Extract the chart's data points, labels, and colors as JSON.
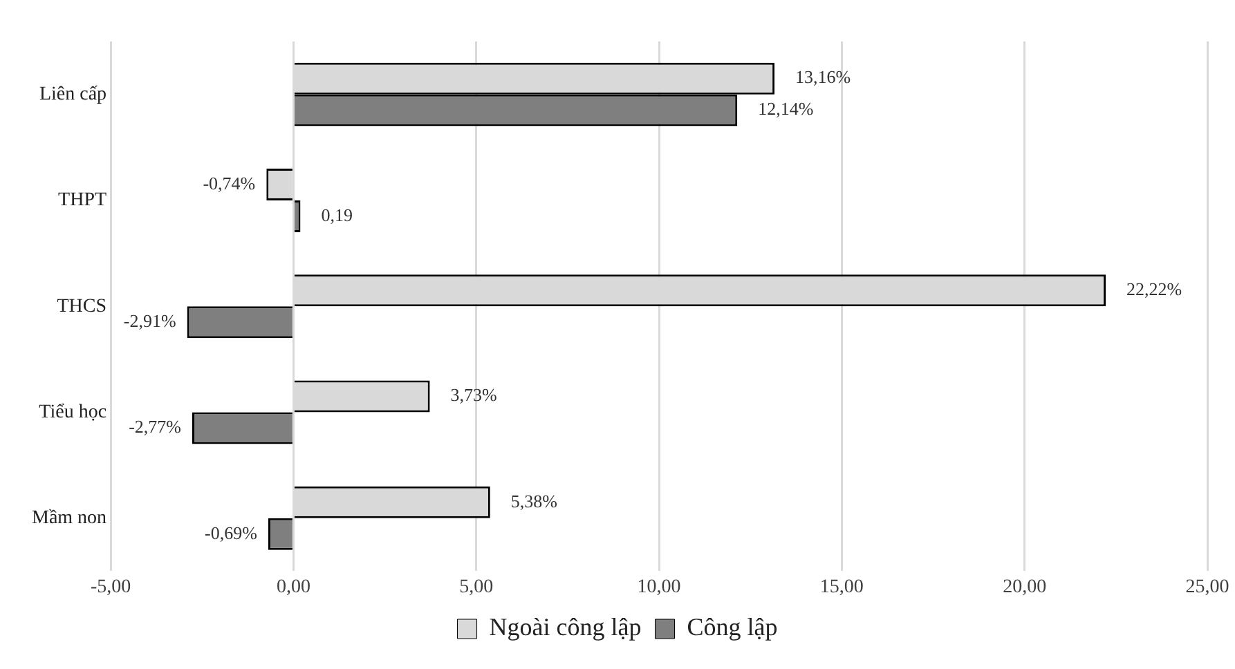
{
  "chart_data": {
    "type": "bar",
    "orientation": "horizontal",
    "categories": [
      "Liên cấp",
      "THPT",
      "THCS",
      "Tiểu học",
      "Mầm non"
    ],
    "series": [
      {
        "name": "Ngoài công lập",
        "color": "#d9d9d9",
        "values": [
          13.16,
          -0.74,
          22.22,
          3.73,
          5.38
        ],
        "value_labels": [
          "13,16%",
          "-0,74%",
          "22,22%",
          "3,73%",
          "5,38%"
        ]
      },
      {
        "name": "Công lập",
        "color": "#7f7f7f",
        "values": [
          12.14,
          0.19,
          -2.91,
          -2.77,
          -0.69
        ],
        "value_labels": [
          "12,14%",
          "0,19",
          "-2,91%",
          "-2,77%",
          "-0,69%"
        ]
      }
    ],
    "xlim": [
      -5,
      25
    ],
    "xticks": [
      {
        "value": -5,
        "label": "-5,00"
      },
      {
        "value": 0,
        "label": "0,00"
      },
      {
        "value": 5,
        "label": "5,00"
      },
      {
        "value": 10,
        "label": "10,00"
      },
      {
        "value": 15,
        "label": "15,00"
      },
      {
        "value": 20,
        "label": "20,00"
      },
      {
        "value": 25,
        "label": "25,00"
      }
    ],
    "grid": "x",
    "legend": "bottom"
  }
}
